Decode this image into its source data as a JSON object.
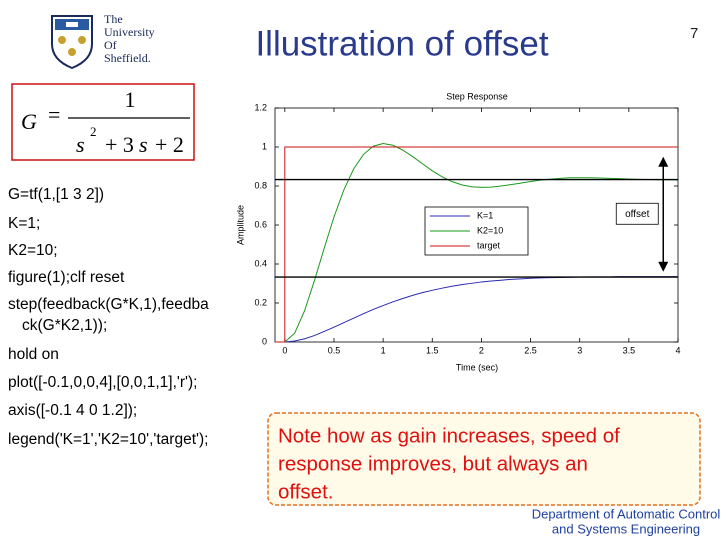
{
  "logo": {
    "lines": [
      "The",
      "University",
      "Of",
      "Sheffield."
    ]
  },
  "page_number": "7",
  "title": "Illustration of offset",
  "equation": {
    "lhs": "G",
    "equals": "=",
    "numerator": "1",
    "denominator": {
      "s1": "s",
      "exp": "2",
      "plus1": "+ 3",
      "s2": "s",
      "plus2": "+ 2"
    }
  },
  "code": [
    "G=tf(1,[1 3 2])",
    "K=1;",
    "K2=10;",
    "figure(1);clf reset",
    "step(feedback(G*K,1),feedba",
    "ck(G*K2,1));",
    "hold on",
    "plot([-0.1,0,0,4],[0,0,1,1],'r');",
    "axis([-0.1 4 0 1.2]);",
    "legend('K=1','K2=10','target');"
  ],
  "note": [
    "Note how as gain increases, speed of",
    "response improves, but always an",
    "offset."
  ],
  "footer": [
    "Department of Automatic Control",
    "and Systems Engineering"
  ],
  "chart_data": {
    "type": "line",
    "title": "Step Response",
    "xlabel": "Time (sec)",
    "ylabel": "Amplitude",
    "x": [
      0,
      0.1,
      0.2,
      0.3,
      0.4,
      0.5,
      0.6,
      0.7,
      0.8,
      0.9,
      1,
      1.1,
      1.2,
      1.3,
      1.4,
      1.5,
      1.6,
      1.7,
      1.8,
      1.9,
      2,
      2.1,
      2.2,
      2.3,
      2.4,
      2.5,
      2.6,
      2.7,
      2.8,
      2.9,
      3,
      3.1,
      3.2,
      3.3,
      3.4,
      3.5,
      3.6,
      3.7,
      3.8,
      3.9,
      4
    ],
    "series": [
      {
        "name": "K=1",
        "color": "#2a2ab0",
        "values": [
          0,
          0.005,
          0.016,
          0.033,
          0.054,
          0.076,
          0.099,
          0.122,
          0.145,
          0.167,
          0.187,
          0.206,
          0.223,
          0.239,
          0.253,
          0.265,
          0.276,
          0.286,
          0.294,
          0.301,
          0.308,
          0.313,
          0.317,
          0.321,
          0.324,
          0.327,
          0.329,
          0.33,
          0.331,
          0.332,
          0.333,
          0.334,
          0.334,
          0.334,
          0.335,
          0.335,
          0.335,
          0.335,
          0.335,
          0.335,
          0.335
        ]
      },
      {
        "name": "K2=10",
        "color": "#1a9a1a",
        "values": [
          0,
          0.045,
          0.159,
          0.313,
          0.48,
          0.641,
          0.779,
          0.887,
          0.962,
          1.004,
          1.018,
          1.009,
          0.984,
          0.951,
          0.914,
          0.878,
          0.847,
          0.823,
          0.806,
          0.796,
          0.793,
          0.794,
          0.8,
          0.807,
          0.815,
          0.823,
          0.83,
          0.835,
          0.839,
          0.842,
          0.842,
          0.842,
          0.841,
          0.839,
          0.838,
          0.836,
          0.834,
          0.833,
          0.832,
          0.832,
          0.831
        ]
      },
      {
        "name": "target",
        "color": "#cc1010",
        "x": [
          -0.1,
          0,
          0,
          4
        ],
        "values": [
          0,
          0,
          1,
          1
        ]
      }
    ],
    "xlim": [
      -0.1,
      4
    ],
    "ylim": [
      0,
      1.2
    ],
    "xticks": [
      0,
      0.5,
      1,
      1.5,
      2,
      2.5,
      3,
      3.5,
      4
    ],
    "yticks": [
      0,
      0.2,
      0.4,
      0.6,
      0.8,
      1,
      1.2
    ],
    "legend": "right",
    "hlines": [
      0.833,
      0.333
    ],
    "offset_arrow": {
      "label": "offset",
      "x": 3.85,
      "from": 0.95,
      "to": 0.36
    }
  }
}
